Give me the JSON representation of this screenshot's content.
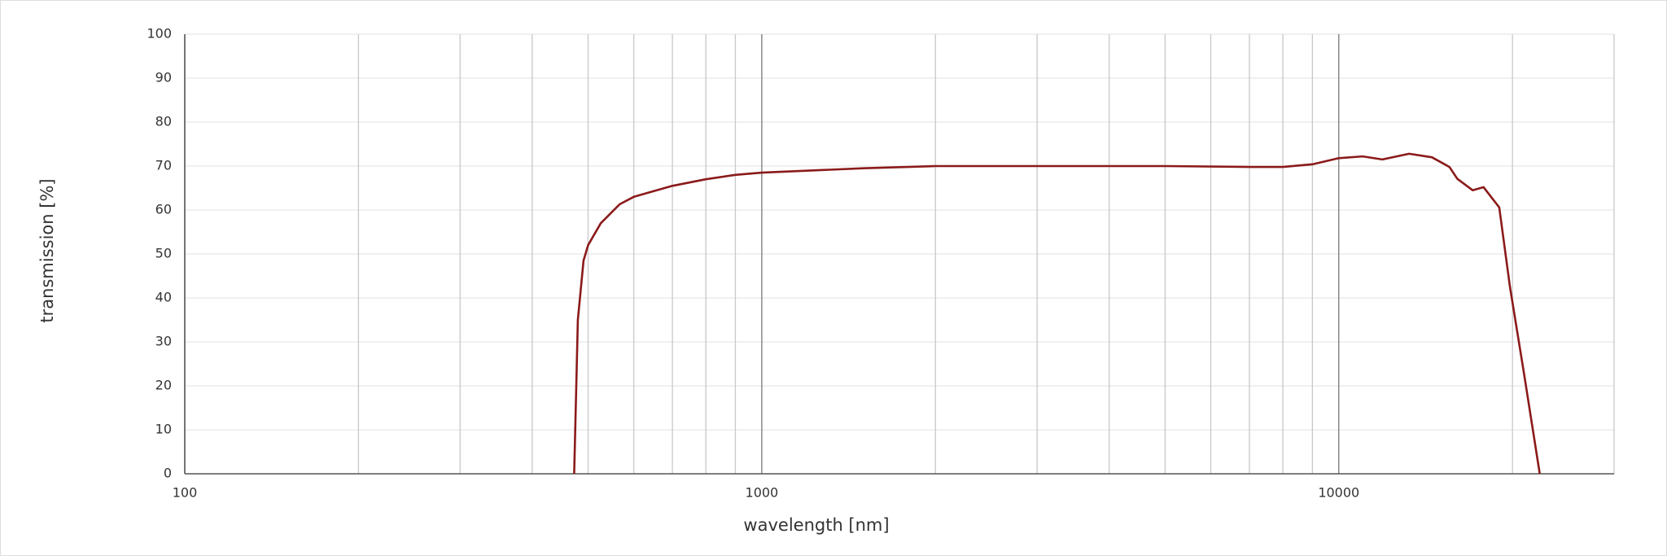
{
  "chart_data": {
    "type": "line",
    "x_label": "wavelength [nm]",
    "y_label": "transmission [%]",
    "xscale": "log",
    "xlim": [
      100,
      30000
    ],
    "ylim": [
      0,
      100
    ],
    "xticks": [
      100,
      1000,
      10000
    ],
    "x_minor_ticks": [
      200,
      300,
      400,
      500,
      600,
      700,
      800,
      900,
      2000,
      3000,
      4000,
      5000,
      6000,
      7000,
      8000,
      9000,
      20000,
      30000
    ],
    "yticks": [
      0,
      10,
      20,
      30,
      40,
      50,
      60,
      70,
      80,
      90,
      100
    ],
    "grid": true,
    "series": [
      {
        "color": "#8b1a1a",
        "x": [
          473,
          476,
          480,
          491,
          500,
          526,
          567,
          600,
          700,
          800,
          900,
          1000,
          1500,
          2000,
          3000,
          5000,
          7000,
          8000,
          9000,
          10000,
          11000,
          11900,
          13240,
          14500,
          15550,
          16050,
          17060,
          17820,
          18970,
          19800,
          20930,
          22300
        ],
        "values": [
          0,
          15,
          35,
          48.5,
          52,
          57,
          61.3,
          63,
          65.5,
          67,
          68,
          68.5,
          69.5,
          70,
          70,
          70,
          69.8,
          69.8,
          70.4,
          71.8,
          72.2,
          71.5,
          72.8,
          72,
          69.8,
          67.1,
          64.5,
          65.2,
          60.6,
          42.5,
          23,
          0
        ]
      }
    ]
  }
}
